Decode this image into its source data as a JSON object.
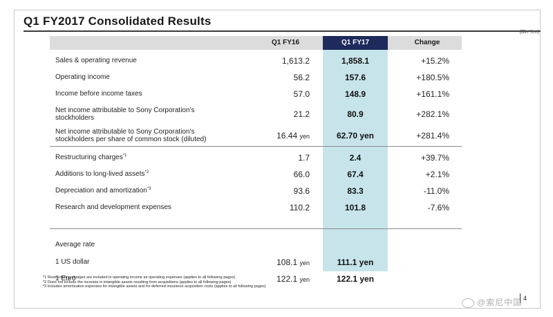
{
  "slide": {
    "title": "Q1 FY2017  Consolidated Results",
    "unit": "(Bln Yen)",
    "page_number": "4"
  },
  "table": {
    "headers": {
      "fy16": "Q1 FY16",
      "fy17": "Q1 FY17",
      "change": "Change"
    },
    "rows": [
      {
        "label": "Sales & operating revenue",
        "fy16": "1,613.2",
        "fy17": "1,858.1",
        "change": "+15.2%"
      },
      {
        "label": "Operating income",
        "fy16": "56.2",
        "fy17": "157.6",
        "change": "+180.5%"
      },
      {
        "label": "Income before income taxes",
        "fy16": "57.0",
        "fy17": "148.9",
        "change": "+161.1%"
      },
      {
        "label": "Net income attributable to Sony Corporation's",
        "label2": "stockholders",
        "fy16": "21.2",
        "fy17": "80.9",
        "change": "+282.1%"
      },
      {
        "label": "Net income attributable to Sony Corporation's",
        "label2": "stockholders per share of common stock (diluted)",
        "fy16": "16.44",
        "fy16_unit": "yen",
        "fy17": "62.70 yen",
        "change": "+281.4%"
      },
      {
        "label": "Restructuring charges",
        "sup": "*1",
        "fy16": "1.7",
        "fy17": "2.4",
        "change": "+39.7%"
      },
      {
        "label": "Additions to long-lived assets",
        "sup": "*2",
        "fy16": "66.0",
        "fy17": "67.4",
        "change": "+2.1%"
      },
      {
        "label": "Depreciation and amortization",
        "sup": "*3",
        "fy16": "93.6",
        "fy17": "83.3",
        "change": "-11.0%"
      },
      {
        "label": "Research and development expenses",
        "fy16": "110.2",
        "fy17": "101.8",
        "change": "-7.6%"
      },
      {
        "label": "Average rate"
      },
      {
        "label": "1 US dollar",
        "fy16": "108.1",
        "fy16_unit": "yen",
        "fy17": "111.1 yen"
      },
      {
        "label": "1 Euro",
        "fy16": "122.1",
        "fy16_unit": "yen",
        "fy17": "122.1 yen"
      }
    ]
  },
  "footnotes": [
    "*1 Restructuring charges are included in operating income as operating expenses (applies to all following pages)",
    "*2 Does not include the increase in intangible assets resulting from acquisitions (applies to all following pages)",
    "*3 Includes amortization expenses for intangible assets and for deferred insurance acquisition costs (applies to all following pages)"
  ],
  "watermark": "@索尼中国"
}
